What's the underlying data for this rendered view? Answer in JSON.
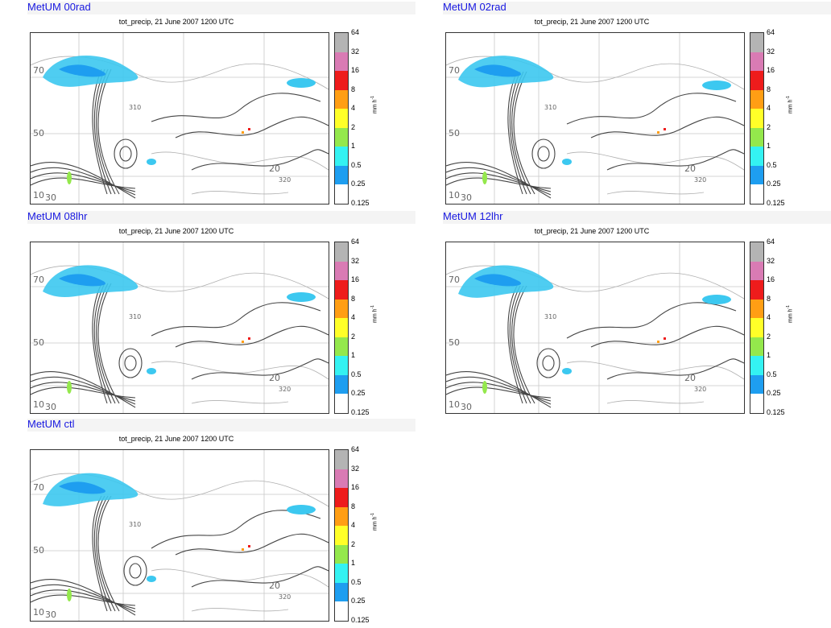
{
  "common": {
    "plot_title": "tot_precip, 21 June 2007 1200 UTC",
    "units": "mm h",
    "units_exp": "-1",
    "colorbar_ticks": [
      "64",
      "32",
      "16",
      "8",
      "4",
      "2",
      "1",
      "0.5",
      "0.25",
      "0.125"
    ],
    "colorbar_colors": [
      "#b4b4b4",
      "#d97bb4",
      "#ee1c1c",
      "#ff9e14",
      "#ffff28",
      "#94e84c",
      "#34f2f2",
      "#1e9ef0",
      "#ffffff"
    ],
    "map_labels": [
      "70",
      "50",
      "20",
      "30",
      "10",
      "310",
      "320"
    ]
  },
  "panels": [
    {
      "title": "MetUM 00rad"
    },
    {
      "title": "MetUM 02rad"
    },
    {
      "title": "MetUM 08lhr"
    },
    {
      "title": "MetUM 12lhr"
    },
    {
      "title": "MetUM ctl"
    }
  ]
}
